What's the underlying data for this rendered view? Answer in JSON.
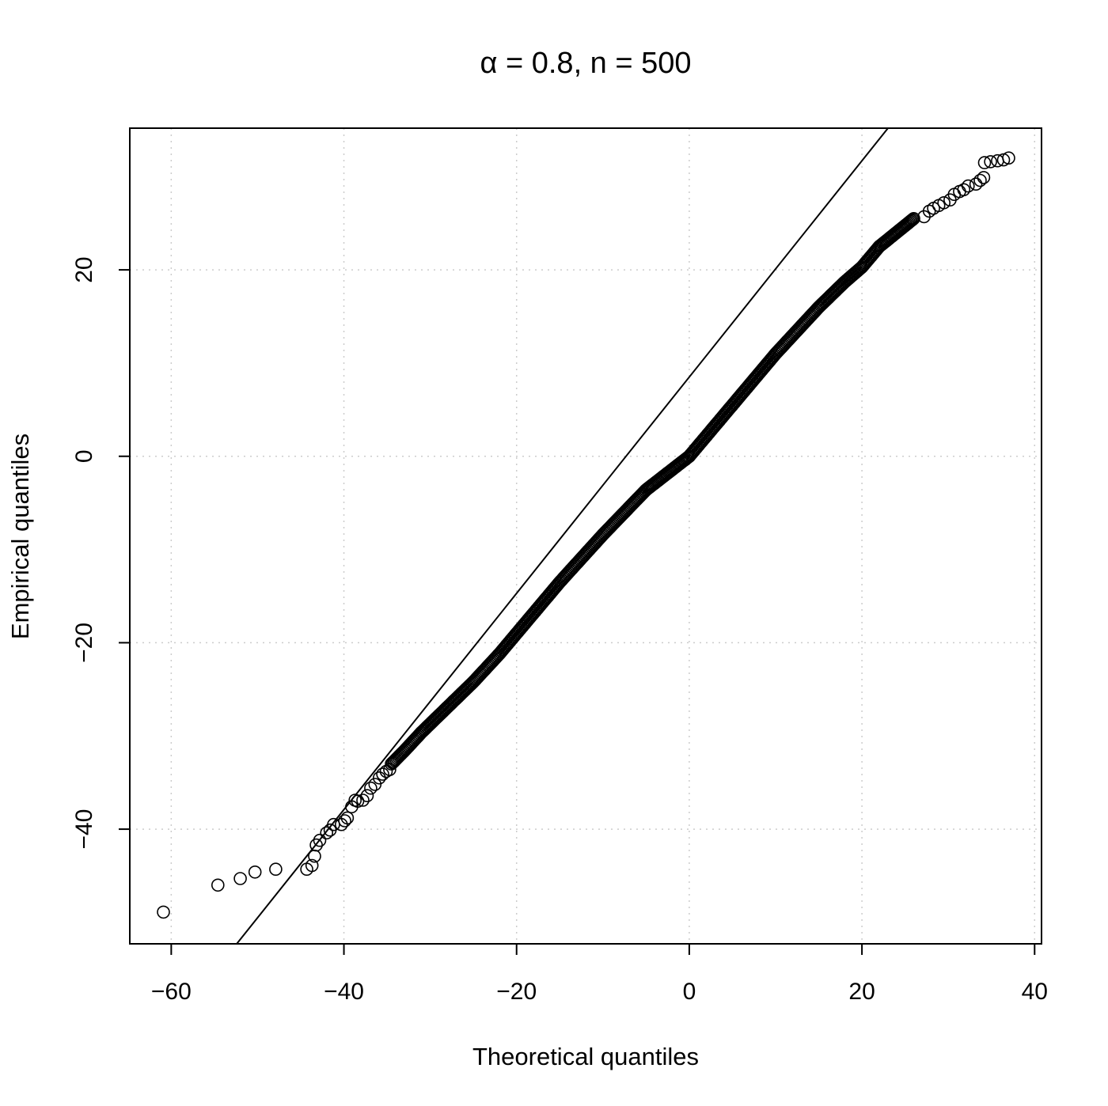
{
  "chart_data": {
    "type": "scatter",
    "title": "α = 0.8, n = 500",
    "xlabel": "Theoretical quantiles",
    "ylabel": "Empirical quantiles",
    "xlim": [
      -64.8,
      40.8
    ],
    "ylim": [
      -52.3,
      35.2
    ],
    "x_ticks": [
      -60,
      -40,
      -20,
      0,
      20,
      40
    ],
    "x_tick_labels": [
      "−60",
      "−40",
      "−20",
      "0",
      "20",
      "40"
    ],
    "y_ticks": [
      -40,
      -20,
      0,
      20
    ],
    "y_tick_labels": [
      "−40",
      "−20",
      "0",
      "20"
    ],
    "grid": true,
    "grid_style": "dotted",
    "reference_line": {
      "slope": 1.16,
      "intercept": 8.5
    },
    "outlier_points": {
      "x": [
        -60.9,
        -54.6,
        -52.0,
        -50.3,
        -47.9,
        -44.3,
        -43.7,
        -43.4,
        -43.2,
        -42.8,
        -42.0,
        -41.6,
        -41.2,
        -40.3,
        -39.9,
        -39.6,
        -39.1,
        -38.7,
        -38.4,
        -37.8,
        -37.3,
        -36.9,
        -36.4,
        -35.9,
        -35.5,
        -35.1,
        -34.7,
        27.2,
        27.8,
        28.3,
        28.9,
        29.5,
        30.2,
        30.7,
        31.3,
        31.8,
        32.3,
        33.2,
        33.7,
        34.1,
        34.2,
        34.9,
        35.7,
        36.4,
        37.0
      ],
      "y": [
        -48.9,
        -46.0,
        -45.3,
        -44.6,
        -44.3,
        -44.3,
        -43.9,
        -42.9,
        -41.7,
        -41.2,
        -40.4,
        -40.1,
        -39.5,
        -39.5,
        -39.1,
        -38.8,
        -37.6,
        -36.9,
        -37.0,
        -36.9,
        -36.4,
        -35.6,
        -35.2,
        -34.5,
        -34.1,
        -33.8,
        -33.6,
        25.7,
        26.3,
        26.6,
        26.9,
        27.2,
        27.5,
        28.1,
        28.4,
        28.6,
        29.0,
        29.2,
        29.6,
        29.9,
        31.5,
        31.6,
        31.7,
        31.8,
        32.0
      ]
    },
    "body_curve": {
      "x": [
        -34.5,
        -33.0,
        -31.0,
        -29.0,
        -27.0,
        -25.0,
        -22.0,
        -20.0,
        -15.0,
        -10.0,
        -5.0,
        0.0,
        5.0,
        10.0,
        15.0,
        18.0,
        20.0,
        22.0,
        24.0,
        26.0
      ],
      "y": [
        -33.0,
        -31.6,
        -29.6,
        -27.8,
        -26.0,
        -24.2,
        -21.2,
        -19.0,
        -13.5,
        -8.4,
        -3.6,
        0.0,
        5.5,
        11.0,
        16.0,
        18.7,
        20.3,
        22.5,
        24.0,
        25.5
      ]
    },
    "n_points": 500
  }
}
